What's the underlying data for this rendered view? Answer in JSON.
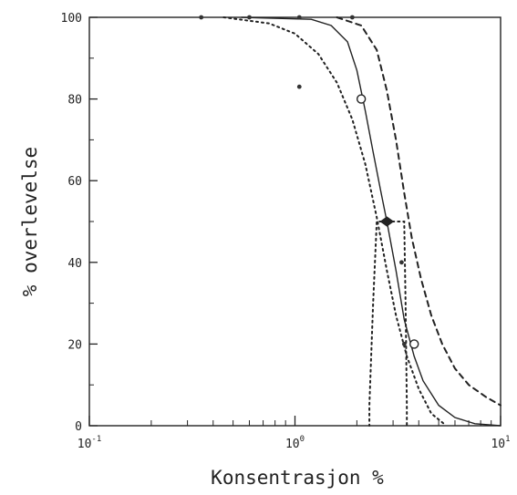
{
  "chart_data": {
    "type": "line",
    "title": "",
    "xlabel": "Konsentrasjon %",
    "ylabel": "% overlevelse",
    "x_scale": "log",
    "xlim": [
      0.1,
      10
    ],
    "ylim": [
      0,
      100
    ],
    "x_ticks": [
      {
        "value": 0.1,
        "base": "10",
        "exp": "-1"
      },
      {
        "value": 1,
        "base": "10",
        "exp": "0"
      },
      {
        "value": 10,
        "base": "10",
        "exp": "1"
      }
    ],
    "y_ticks": [
      0,
      20,
      40,
      60,
      80,
      100
    ],
    "grid": false,
    "legend": "none",
    "series": [
      {
        "style": "solid",
        "points": [
          [
            0.55,
            100
          ],
          [
            1.2,
            99.5
          ],
          [
            1.5,
            98
          ],
          [
            1.8,
            94
          ],
          [
            2.0,
            87
          ],
          [
            2.2,
            77
          ],
          [
            2.4,
            67
          ],
          [
            2.6,
            58
          ],
          [
            2.8,
            50
          ],
          [
            3.1,
            38
          ],
          [
            3.4,
            26
          ],
          [
            3.8,
            17
          ],
          [
            4.2,
            11
          ],
          [
            5.0,
            5
          ],
          [
            6.0,
            2
          ],
          [
            7.5,
            0.5
          ],
          [
            10,
            0
          ]
        ]
      },
      {
        "style": "dotted",
        "points": [
          [
            0.45,
            100
          ],
          [
            0.75,
            98.5
          ],
          [
            1.0,
            96
          ],
          [
            1.3,
            91
          ],
          [
            1.6,
            84
          ],
          [
            1.9,
            75
          ],
          [
            2.2,
            64
          ],
          [
            2.5,
            51
          ],
          [
            2.8,
            38
          ],
          [
            3.1,
            27
          ],
          [
            3.5,
            17
          ],
          [
            4.0,
            9
          ],
          [
            4.6,
            3
          ],
          [
            5.3,
            0.5
          ]
        ]
      },
      {
        "style": "dashed",
        "points": [
          [
            1.6,
            100
          ],
          [
            2.1,
            98
          ],
          [
            2.5,
            92
          ],
          [
            2.8,
            82
          ],
          [
            3.1,
            70
          ],
          [
            3.4,
            57
          ],
          [
            3.7,
            46
          ],
          [
            4.1,
            36
          ],
          [
            4.6,
            27
          ],
          [
            5.2,
            20
          ],
          [
            6.0,
            14
          ],
          [
            7.0,
            10
          ],
          [
            8.5,
            7
          ],
          [
            10,
            5
          ]
        ]
      },
      {
        "style": "dotted",
        "points": [
          [
            2.8,
            50
          ],
          [
            2.5,
            50
          ],
          [
            2.4,
            30
          ],
          [
            2.3,
            5
          ],
          [
            2.3,
            0
          ]
        ]
      },
      {
        "style": "dotted",
        "points": [
          [
            2.8,
            50
          ],
          [
            3.4,
            50
          ],
          [
            3.45,
            30
          ],
          [
            3.5,
            5
          ],
          [
            3.5,
            0
          ]
        ]
      }
    ],
    "observations_open": [
      [
        2.1,
        80
      ],
      [
        3.8,
        20
      ]
    ],
    "observations_filled": [
      [
        0.35,
        100
      ],
      [
        0.6,
        100
      ],
      [
        1.05,
        100
      ],
      [
        1.9,
        100
      ],
      [
        1.05,
        83
      ],
      [
        3.3,
        40
      ],
      [
        3.4,
        20
      ]
    ],
    "lc50_marker": [
      2.8,
      50
    ]
  }
}
